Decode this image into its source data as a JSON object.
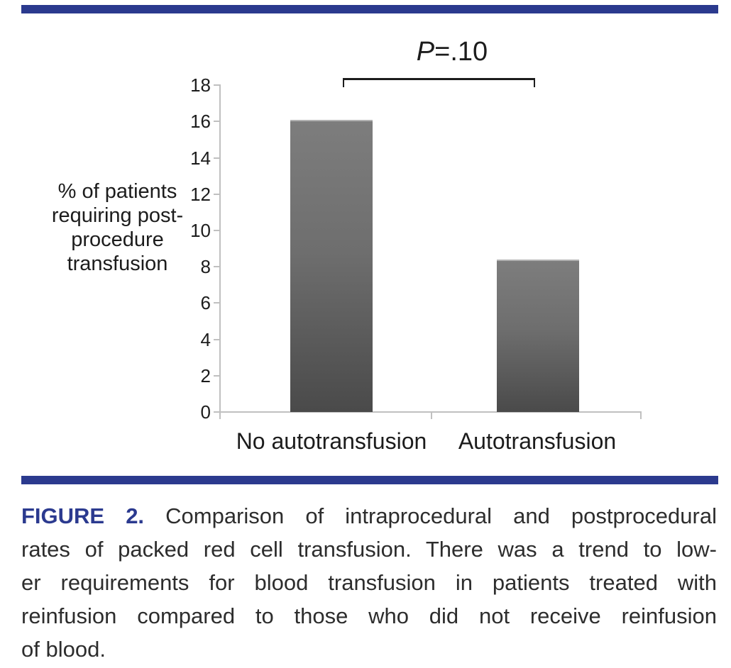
{
  "figure": {
    "accent_color": "#2b3a8e",
    "text_color": "#1c1c1c",
    "axis_color": "#c0c0c0",
    "bar_gradient_top": "#7d7d7d",
    "bar_gradient_bottom": "#4a4a4a",
    "p_annotation": {
      "symbol": "P",
      "rest": "=.10",
      "full": "P=.10"
    },
    "caption": {
      "label": "FIGURE 2.",
      "label_color": "#2b3a8f",
      "lines": [
        "Comparison of intraprocedural and postprocedural",
        "rates of packed red cell transfusion. There was a trend to low-",
        "er requirements for blood transfusion in patients treated with",
        "reinfusion compared to those who did not receive reinfusion",
        "of blood."
      ]
    }
  },
  "chart_data": {
    "type": "bar",
    "categories": [
      "No autotransfusion",
      "Autotransfusion"
    ],
    "values": [
      16.1,
      8.4
    ],
    "title": "",
    "xlabel": "",
    "ylabel": "% of patients requiring post-procedure transfusion",
    "ylabel_lines": [
      "% of patients",
      "requiring post-",
      "procedure",
      "transfusion"
    ],
    "ylim": [
      0,
      18
    ],
    "yticks": [
      0,
      2,
      4,
      6,
      8,
      10,
      12,
      14,
      16,
      18
    ],
    "grid": false,
    "legend": false,
    "bar_color": "gray gradient",
    "annotation": {
      "text": "P=.10",
      "connects": [
        "No autotransfusion",
        "Autotransfusion"
      ]
    }
  }
}
